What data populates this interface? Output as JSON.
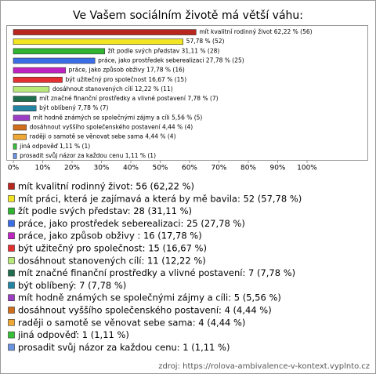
{
  "chart_data": {
    "type": "bar",
    "orientation": "horizontal",
    "title": "Ve Vašem sociálním životě má větší váhu:",
    "values": [
      62.22,
      57.78,
      31.11,
      27.78,
      17.78,
      16.67,
      12.22,
      7.78,
      7.78,
      5.56,
      4.44,
      4.44,
      1.11,
      1.11
    ],
    "value_labels": [
      "mít kvalitní rodinný život 62,22 % (56)",
      "57,78 % (52)",
      "žít podle svých představ 31,11 % (28)",
      "práce, jako prostředek seberealizaci 27,78 % (25)",
      "práce, jako způsob obživy  17,78 % (16)",
      "být užitečný pro společnost 16,67 % (15)",
      "dosáhnout stanovených cílí 12,22 % (11)",
      "mít značné finanční prostředky a vlivné postavení 7,78 % (7)",
      "být oblíbený 7,78 % (7)",
      "mít hodně známých se společnými zájmy a cíli 5,56 % (5)",
      "dosáhnout vyššího společenského postavení 4,44 % (4)",
      "raději o samotě se věnovat sebe sama 4,44 % (4)",
      "jiná odpověď 1,11 % (1)",
      "prosadit svůj názor za každou cenu 1,11 % (1)"
    ],
    "legend": [
      "mít kvalitní rodinný život: 56 (62,22 %)",
      "mít práci, která je zajímavá a která by mě bavila: 52 (57,78 %)",
      "žít podle svých představ: 28 (31,11 %)",
      "práce, jako prostředek seberealizaci: 25 (27,78 %)",
      "práce, jako způsob obživy : 16 (17,78 %)",
      "být užitečný pro společnost: 15 (16,67 %)",
      "dosáhnout stanovených cílí: 11 (12,22 %)",
      "mít značné finanční prostředky a vlivné postavení: 7 (7,78 %)",
      "být oblíbený: 7 (7,78 %)",
      "mít hodně známých se společnými zájmy a cíli: 5 (5,56 %)",
      "dosáhnout vyššího společenského postavení: 4 (4,44 %)",
      "raději o samotě se věnovat sebe sama: 4 (4,44 %)",
      "jiná odpověď: 1 (1,11 %)",
      "prosadit svůj názor za každou cenu: 1 (1,11 %)"
    ],
    "colors": [
      "#b8261e",
      "#f0e424",
      "#2fb52f",
      "#3a6ee6",
      "#c024c0",
      "#e43030",
      "#b8e878",
      "#1f6e4e",
      "#2384a4",
      "#9c3ec4",
      "#d06e1c",
      "#f0a834",
      "#38c038",
      "#6a94e2"
    ],
    "xlim": [
      0,
      100
    ],
    "xticks": [
      {
        "value": 0,
        "label": "0%"
      },
      {
        "value": 10,
        "label": "10%"
      },
      {
        "value": 20,
        "label": "20%"
      },
      {
        "value": 30,
        "label": "30%"
      },
      {
        "value": 40,
        "label": "40%"
      },
      {
        "value": 50,
        "label": "50%"
      },
      {
        "value": 60,
        "label": "60%"
      },
      {
        "value": 70,
        "label": "70%"
      },
      {
        "value": 80,
        "label": "80%"
      },
      {
        "value": 90,
        "label": "90%"
      },
      {
        "value": 100,
        "label": "100%"
      }
    ],
    "source": "zdroj: https://rolova-ambivalence-v-kontext.vyplnto.cz"
  }
}
